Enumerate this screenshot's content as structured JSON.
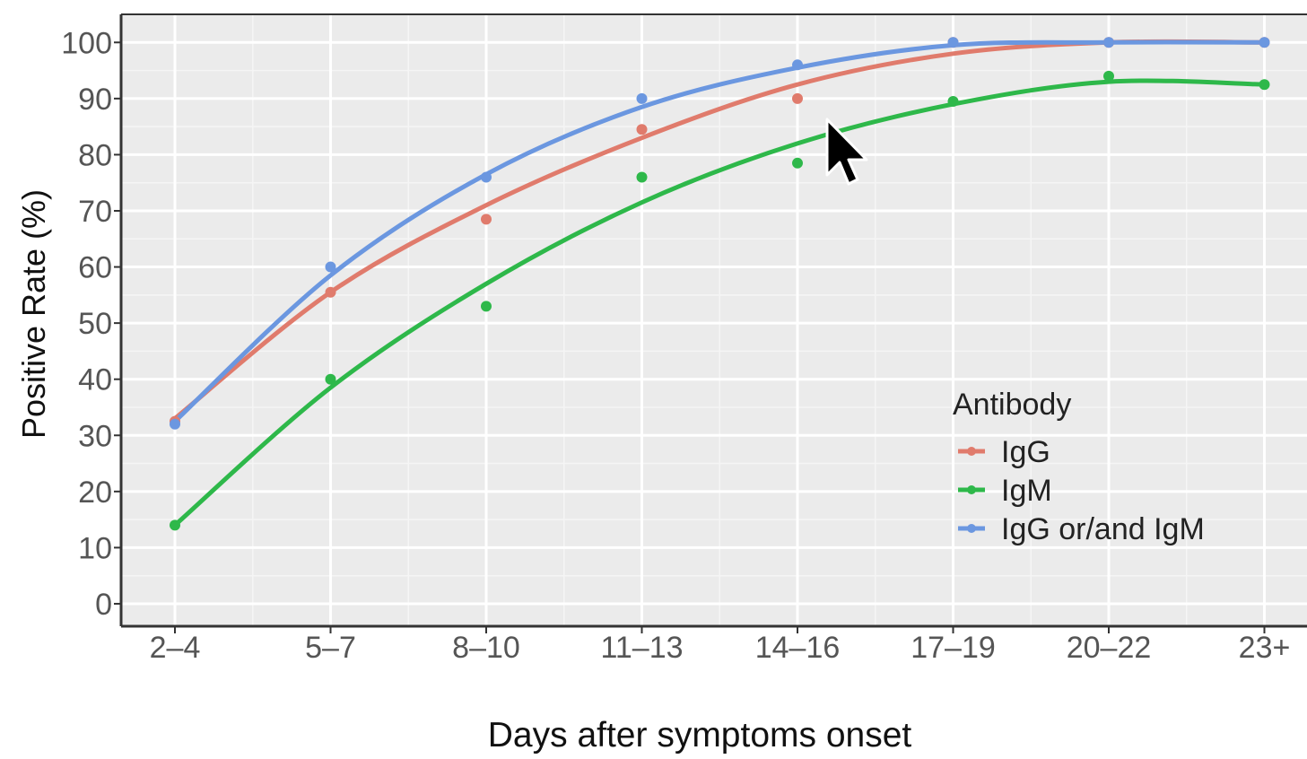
{
  "chart_data": {
    "type": "scatter",
    "xlabel": "Days after symptoms onset",
    "ylabel": "Positive Rate (%)",
    "categories": [
      "2–4",
      "5–7",
      "8–10",
      "11–13",
      "14–16",
      "17–19",
      "20–22",
      "23+"
    ],
    "ylim": [
      -4,
      105
    ],
    "yticks": [
      0,
      10,
      20,
      30,
      40,
      50,
      60,
      70,
      80,
      90,
      100
    ],
    "grid": true,
    "legend": {
      "title": "Antibody",
      "placement": "right"
    },
    "series": [
      {
        "name": "IgG",
        "color": "#e07b6c",
        "points": [
          32.5,
          55.5,
          68.5,
          84.5,
          90,
          100,
          100,
          100
        ],
        "fit": [
          33,
          55.5,
          71,
          83,
          92.5,
          98,
          100,
          100
        ]
      },
      {
        "name": "IgM",
        "color": "#2eb84a",
        "points": [
          14,
          40,
          53,
          76,
          78.5,
          89.5,
          94,
          92.5
        ],
        "fit": [
          14,
          38.5,
          57,
          71.5,
          82,
          89,
          93,
          92.5
        ]
      },
      {
        "name": "IgG or/and IgM",
        "color": "#6b97e0",
        "points": [
          32,
          60,
          76,
          90,
          96,
          100,
          100,
          100
        ],
        "fit": [
          32.5,
          58.5,
          76.5,
          88.5,
          95.5,
          99.5,
          100,
          100
        ]
      }
    ]
  },
  "colors": {
    "panel_bg": "#ebebeb",
    "grid_major": "#ffffff",
    "grid_minor": "#f5f5f5",
    "axis_text": "#555555",
    "cursor_icon": "#000000"
  },
  "icons": {
    "cursor": "mouse-pointer-icon"
  }
}
